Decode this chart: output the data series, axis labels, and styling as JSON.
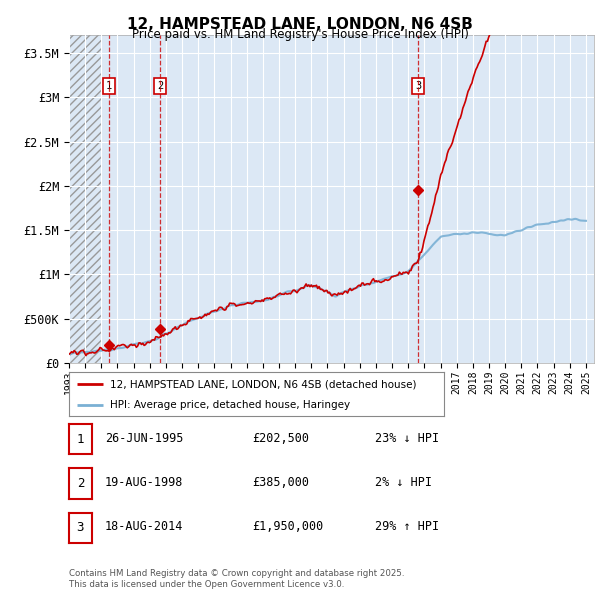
{
  "title": "12, HAMPSTEAD LANE, LONDON, N6 4SB",
  "subtitle": "Price paid vs. HM Land Registry's House Price Index (HPI)",
  "ylim": [
    0,
    3700000
  ],
  "xlim": [
    1993,
    2025.5
  ],
  "yticks": [
    0,
    500000,
    1000000,
    1500000,
    2000000,
    2500000,
    3000000,
    3500000
  ],
  "ytick_labels": [
    "£0",
    "£500K",
    "£1M",
    "£1.5M",
    "£2M",
    "£2.5M",
    "£3M",
    "£3.5M"
  ],
  "hpi_color": "#7ab0d4",
  "price_color": "#cc0000",
  "bg_hatch_color": "#c8c8c8",
  "plot_bg_color": "#dce8f5",
  "grid_color": "#ffffff",
  "vline_color": "#cc0000",
  "legend_label_price": "12, HAMPSTEAD LANE, LONDON, N6 4SB (detached house)",
  "legend_label_hpi": "HPI: Average price, detached house, Haringey",
  "table_rows": [
    {
      "num": "1",
      "date": "26-JUN-1995",
      "price": "£202,500",
      "vs_hpi": "23% ↓ HPI"
    },
    {
      "num": "2",
      "date": "19-AUG-1998",
      "price": "£385,000",
      "vs_hpi": "2% ↓ HPI"
    },
    {
      "num": "3",
      "date": "18-AUG-2014",
      "price": "£1,950,000",
      "vs_hpi": "29% ↑ HPI"
    }
  ],
  "sale_points": [
    {
      "year": 1995.49,
      "price": 202500,
      "label": "1"
    },
    {
      "year": 1998.63,
      "price": 385000,
      "label": "2"
    },
    {
      "year": 2014.63,
      "price": 1950000,
      "label": "3"
    }
  ],
  "vline_years": [
    1995.49,
    1998.63,
    2014.63
  ],
  "footer": "Contains HM Land Registry data © Crown copyright and database right 2025.\nThis data is licensed under the Open Government Licence v3.0.",
  "num_box_color": "#cc0000",
  "hatch_end_year": 1995.0
}
